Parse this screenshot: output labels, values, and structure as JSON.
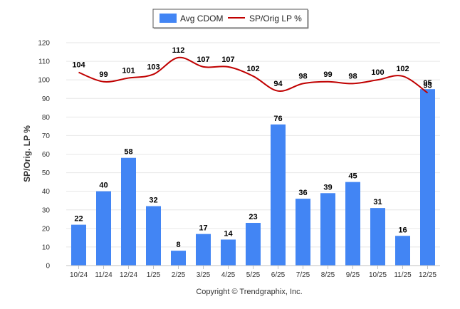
{
  "chart_data": {
    "type": "bar",
    "title": "",
    "xlabel": "",
    "ylabel": "SP/Orig. LP %",
    "ylim": [
      0,
      120
    ],
    "yticks": [
      0,
      10,
      20,
      30,
      40,
      50,
      60,
      70,
      80,
      90,
      100,
      110,
      120
    ],
    "grid": true,
    "legend_position": "top-center",
    "categories": [
      "10/24",
      "11/24",
      "12/24",
      "1/25",
      "2/25",
      "3/25",
      "4/25",
      "5/25",
      "6/25",
      "7/25",
      "8/25",
      "9/25",
      "10/25",
      "11/25",
      "12/25"
    ],
    "series": [
      {
        "name": "Avg CDOM",
        "type": "bar",
        "color": "#4285f4",
        "values": [
          22,
          40,
          58,
          32,
          8,
          17,
          14,
          23,
          76,
          36,
          39,
          45,
          31,
          16,
          95
        ]
      },
      {
        "name": "SP/Orig LP %",
        "type": "line",
        "color": "#c00000",
        "values": [
          104,
          99,
          101,
          103,
          112,
          107,
          107,
          102,
          94,
          98,
          99,
          98,
          100,
          102,
          93
        ]
      }
    ],
    "footer": "Copyright © Trendgraphix, Inc."
  }
}
